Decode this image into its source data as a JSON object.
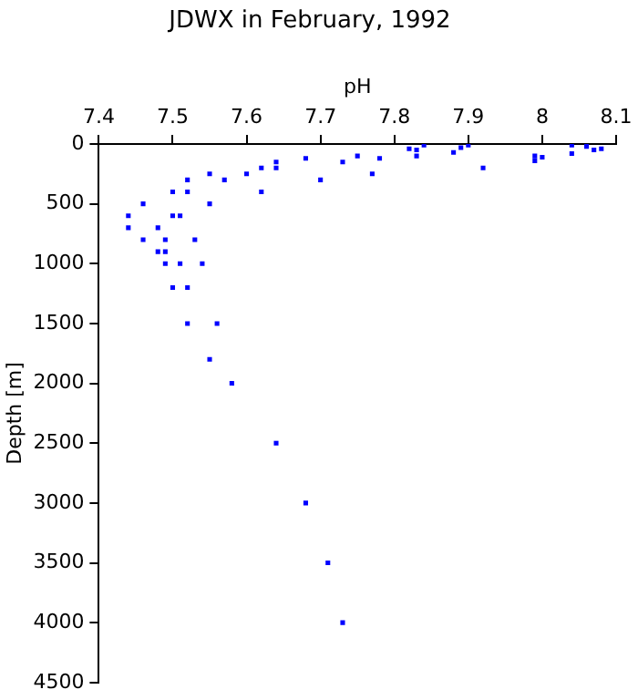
{
  "chart_data": {
    "type": "scatter",
    "title": "JDWX in February, 1992",
    "xlabel": "pH",
    "ylabel": "Depth [m]",
    "xlim": [
      7.4,
      8.1
    ],
    "xticks": [
      7.4,
      7.5,
      7.6,
      7.7,
      7.8,
      7.9,
      8,
      8.1
    ],
    "ylim": [
      4500,
      0
    ],
    "yticks": [
      0,
      500,
      1000,
      1500,
      2000,
      2500,
      3000,
      3500,
      4000,
      4500
    ],
    "grid": false,
    "legend": false,
    "marker": "square",
    "series": [
      {
        "color": "#0000ff",
        "x": [
          7.44,
          7.44,
          7.46,
          7.46,
          7.48,
          7.48,
          7.49,
          7.49,
          7.49,
          7.5,
          7.5,
          7.51,
          7.51,
          7.5,
          7.52,
          7.52,
          7.52,
          7.52,
          7.53,
          7.54,
          7.55,
          7.55,
          7.55,
          7.56,
          7.57,
          7.58,
          7.6,
          7.62,
          7.62,
          7.64,
          7.64,
          7.68,
          7.7,
          7.73,
          7.75,
          7.64,
          7.68,
          7.71,
          7.73,
          7.77,
          7.78,
          7.82,
          7.83,
          7.83,
          7.84,
          7.88,
          7.89,
          7.9,
          7.92,
          7.99,
          7.99,
          8,
          8.04,
          8.04,
          8.06,
          8.07,
          8.08
        ],
        "values": [
          600,
          700,
          500,
          800,
          700,
          900,
          800,
          900,
          1000,
          400,
          600,
          600,
          1000,
          1200,
          300,
          400,
          1200,
          1500,
          800,
          1000,
          250,
          500,
          1800,
          1500,
          300,
          2000,
          250,
          200,
          400,
          150,
          200,
          120,
          300,
          150,
          100,
          2500,
          3000,
          3500,
          4000,
          250,
          120,
          40,
          50,
          100,
          10,
          70,
          30,
          10,
          200,
          140,
          100,
          110,
          10,
          80,
          20,
          50,
          40
        ]
      }
    ]
  }
}
